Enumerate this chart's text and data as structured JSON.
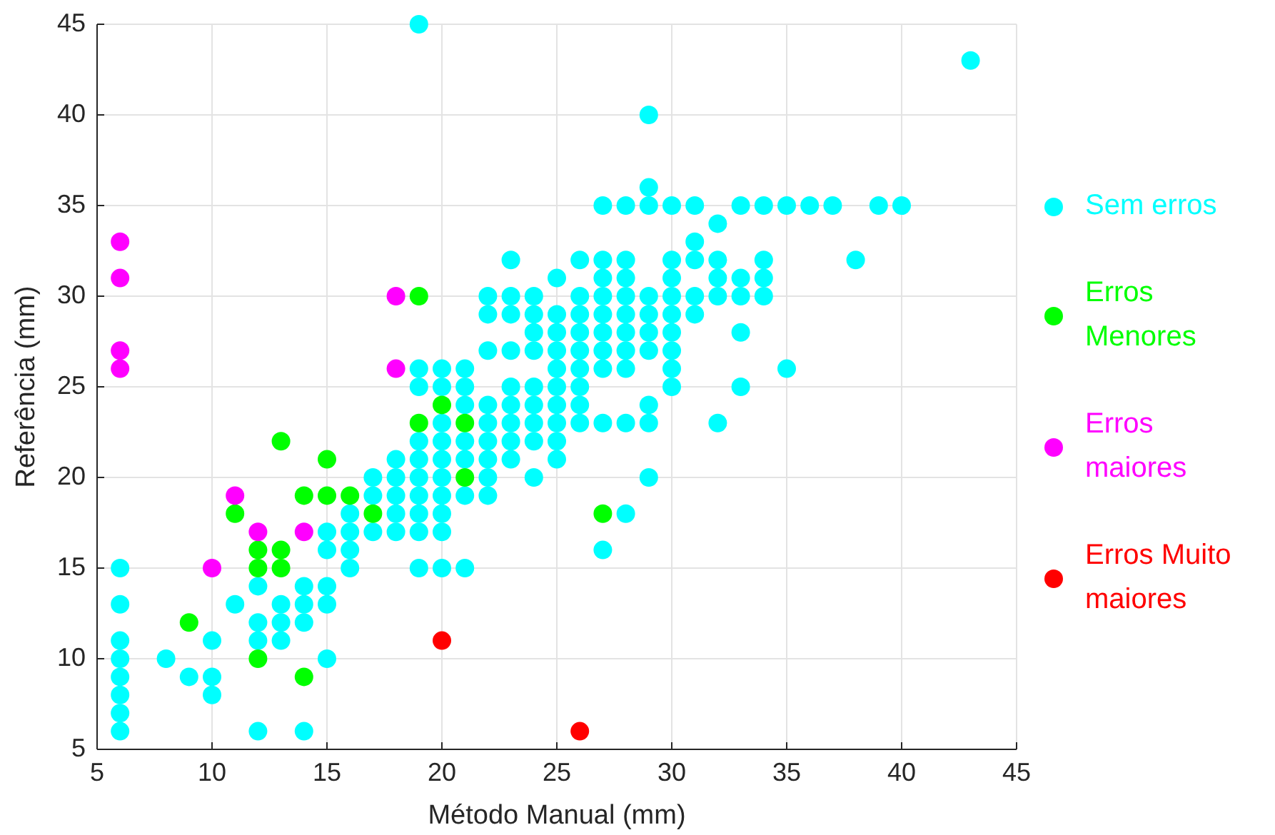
{
  "chart_data": {
    "type": "scatter",
    "xlabel": "Método Manual (mm)",
    "ylabel": "Referência (mm)",
    "xlim": [
      5,
      45
    ],
    "ylim": [
      5,
      45
    ],
    "xticks": [
      5,
      10,
      15,
      20,
      25,
      30,
      35,
      40,
      45
    ],
    "yticks": [
      5,
      10,
      15,
      20,
      25,
      30,
      35,
      40,
      45
    ],
    "grid": true,
    "legend": "right",
    "marker": "circle",
    "series": [
      {
        "name": "Sem erros",
        "color": "#00ffff",
        "x": [
          6,
          6,
          6,
          6,
          6,
          6,
          6,
          6,
          8,
          9,
          10,
          10,
          10,
          11,
          12,
          12,
          12,
          12,
          13,
          13,
          13,
          14,
          14,
          14,
          14,
          15,
          15,
          15,
          15,
          15,
          16,
          16,
          16,
          16,
          17,
          17,
          17,
          18,
          18,
          18,
          18,
          18,
          19,
          19,
          19,
          19,
          19,
          19,
          19,
          19,
          19,
          19,
          20,
          20,
          20,
          20,
          20,
          20,
          20,
          20,
          20,
          20,
          21,
          21,
          21,
          21,
          21,
          21,
          21,
          22,
          22,
          22,
          22,
          22,
          22,
          22,
          22,
          22,
          23,
          23,
          23,
          23,
          23,
          23,
          23,
          23,
          23,
          24,
          24,
          24,
          24,
          24,
          24,
          24,
          24,
          24,
          25,
          25,
          25,
          25,
          25,
          25,
          25,
          25,
          25,
          25,
          26,
          26,
          26,
          26,
          26,
          26,
          26,
          26,
          26,
          27,
          27,
          27,
          27,
          27,
          27,
          27,
          27,
          27,
          27,
          28,
          28,
          28,
          28,
          28,
          28,
          28,
          28,
          28,
          28,
          29,
          29,
          29,
          29,
          29,
          29,
          29,
          29,
          29,
          29,
          30,
          30,
          30,
          30,
          30,
          30,
          30,
          30,
          30,
          31,
          31,
          31,
          31,
          31,
          32,
          32,
          32,
          32,
          32,
          33,
          33,
          33,
          33,
          33,
          34,
          34,
          34,
          34,
          35,
          35,
          36,
          37,
          38,
          39,
          40,
          43
        ],
        "values": [
          6,
          7,
          8,
          9,
          10,
          11,
          13,
          15,
          10,
          9,
          8,
          9,
          11,
          13,
          6,
          11,
          12,
          14,
          11,
          12,
          13,
          6,
          12,
          13,
          14,
          10,
          13,
          14,
          16,
          17,
          15,
          16,
          17,
          18,
          17,
          19,
          20,
          17,
          18,
          19,
          20,
          21,
          15,
          17,
          18,
          19,
          20,
          21,
          22,
          25,
          26,
          45,
          15,
          17,
          18,
          19,
          20,
          21,
          22,
          23,
          25,
          26,
          15,
          19,
          21,
          22,
          24,
          25,
          26,
          19,
          20,
          21,
          22,
          23,
          24,
          27,
          29,
          30,
          21,
          22,
          23,
          24,
          25,
          27,
          29,
          30,
          32,
          20,
          22,
          23,
          24,
          25,
          27,
          28,
          29,
          30,
          21,
          22,
          23,
          24,
          25,
          26,
          27,
          28,
          29,
          31,
          23,
          24,
          25,
          26,
          27,
          28,
          29,
          30,
          32,
          16,
          23,
          26,
          27,
          28,
          29,
          30,
          31,
          32,
          35,
          18,
          23,
          26,
          27,
          28,
          29,
          30,
          31,
          32,
          35,
          20,
          23,
          24,
          27,
          28,
          29,
          30,
          35,
          36,
          40,
          25,
          26,
          27,
          28,
          29,
          30,
          31,
          32,
          35,
          29,
          30,
          32,
          33,
          35,
          23,
          30,
          31,
          32,
          34,
          25,
          28,
          30,
          31,
          35,
          30,
          31,
          32,
          35,
          26,
          35,
          35,
          35,
          32,
          35,
          35,
          43
        ]
      },
      {
        "name": "Erros Menores",
        "color": "#00ff00",
        "x": [
          9,
          11,
          12,
          12,
          12,
          13,
          13,
          13,
          14,
          14,
          15,
          15,
          16,
          17,
          19,
          19,
          20,
          21,
          21,
          27
        ],
        "values": [
          12,
          18,
          10,
          15,
          16,
          15,
          16,
          22,
          9,
          19,
          19,
          21,
          19,
          18,
          23,
          30,
          24,
          23,
          20,
          18
        ]
      },
      {
        "name": "Erros maiores",
        "color": "#ff00ff",
        "x": [
          6,
          6,
          6,
          6,
          10,
          11,
          12,
          14,
          18,
          18
        ],
        "values": [
          26,
          27,
          31,
          33,
          15,
          19,
          17,
          17,
          26,
          30
        ]
      },
      {
        "name": "Erros Muito maiores",
        "color": "#ff0000",
        "x": [
          20,
          26
        ],
        "values": [
          11,
          6
        ]
      }
    ]
  }
}
